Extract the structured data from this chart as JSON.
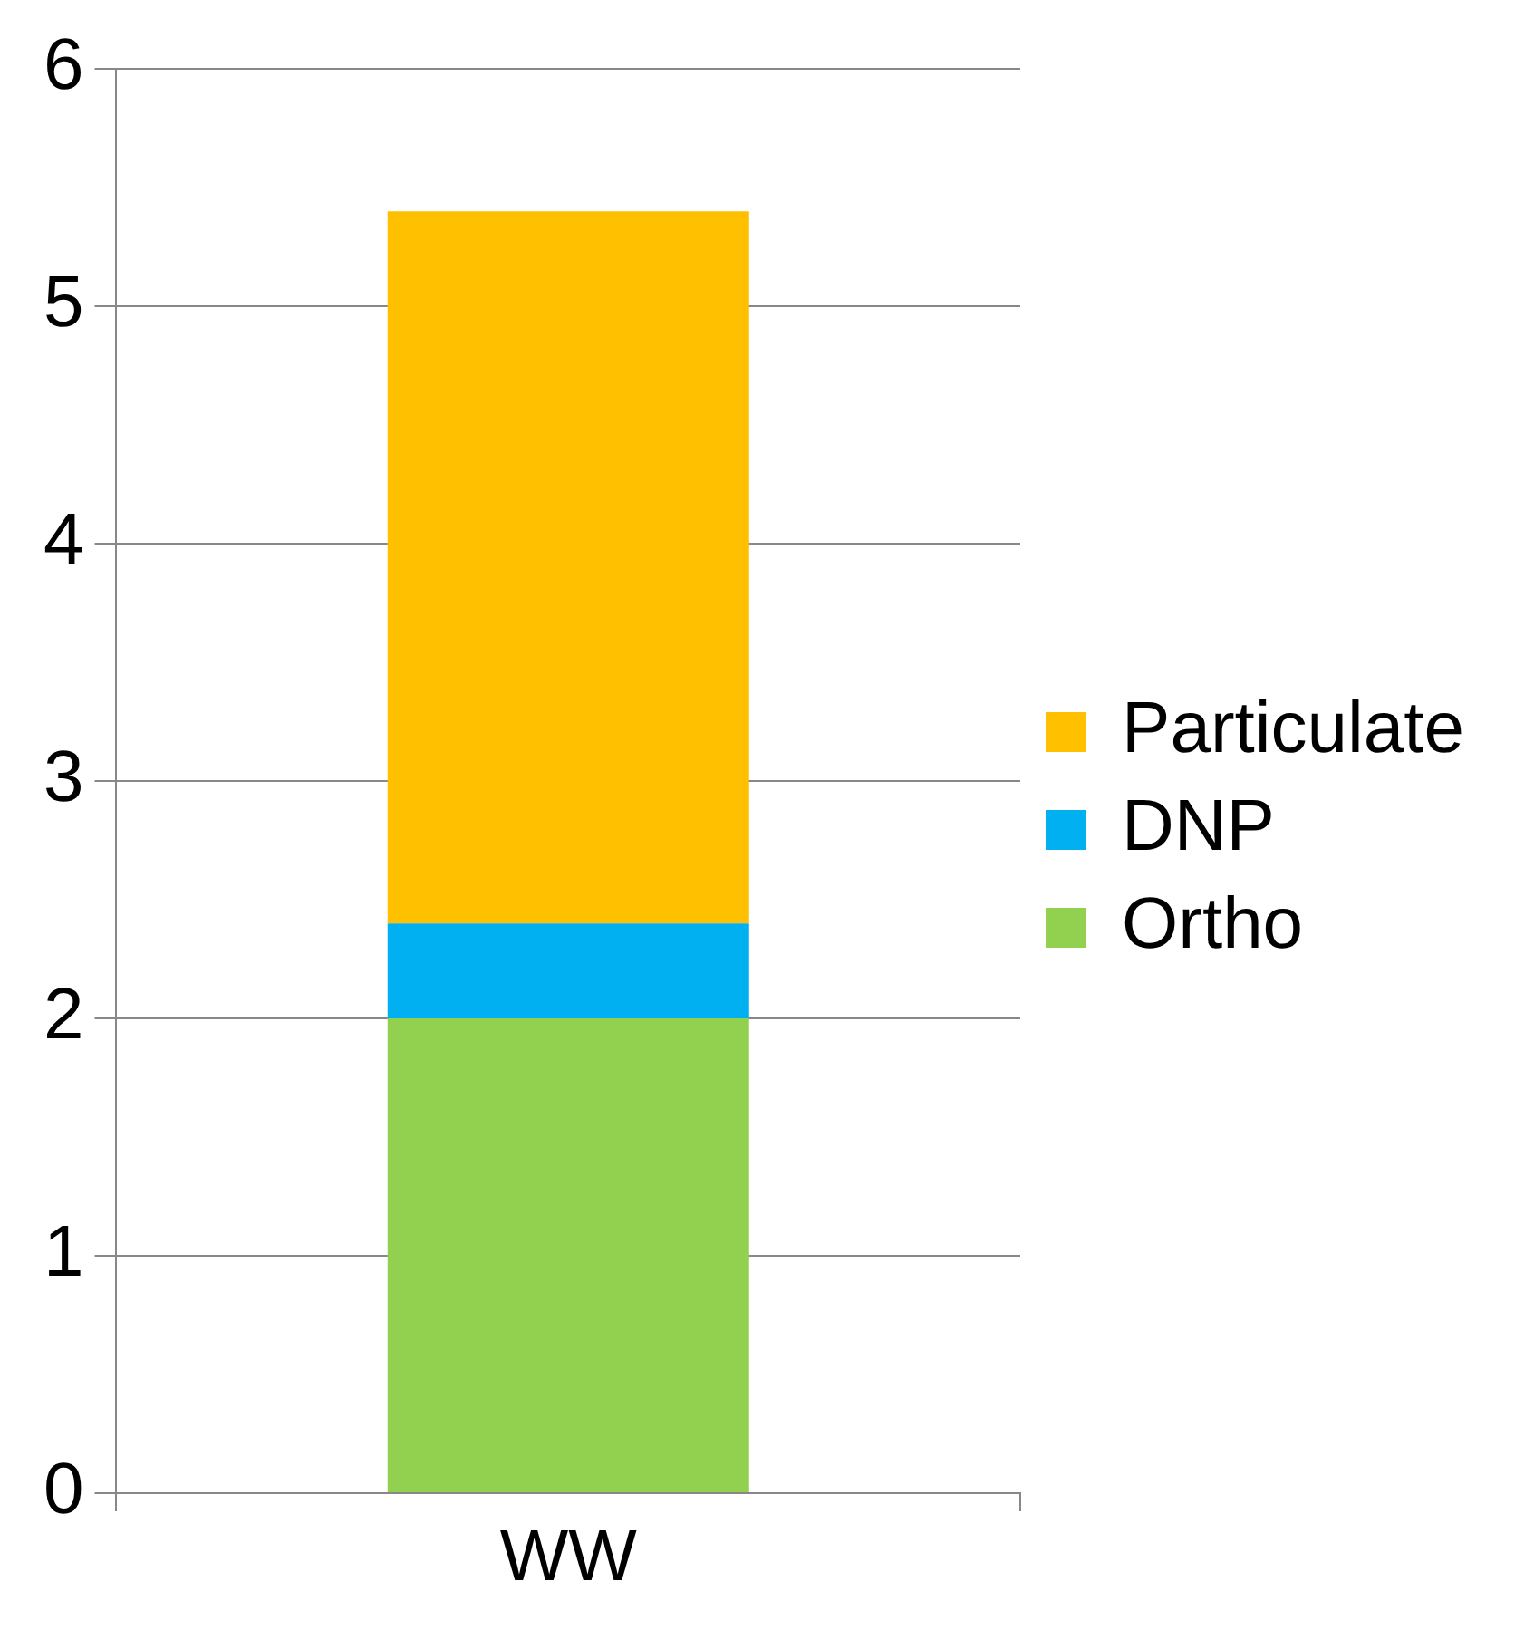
{
  "chart_data": {
    "type": "bar",
    "stacked": true,
    "categories": [
      "WW"
    ],
    "series": [
      {
        "name": "Ortho",
        "color": "#92d050",
        "values": [
          2.0
        ]
      },
      {
        "name": "DNP",
        "color": "#00b0f0",
        "values": [
          0.4
        ]
      },
      {
        "name": "Particulate",
        "color": "#ffc000",
        "values": [
          3.0
        ]
      }
    ],
    "ylim": [
      0,
      6
    ],
    "yticks": [
      0,
      1,
      2,
      3,
      4,
      5,
      6
    ],
    "grid": "y",
    "legend": "right"
  }
}
